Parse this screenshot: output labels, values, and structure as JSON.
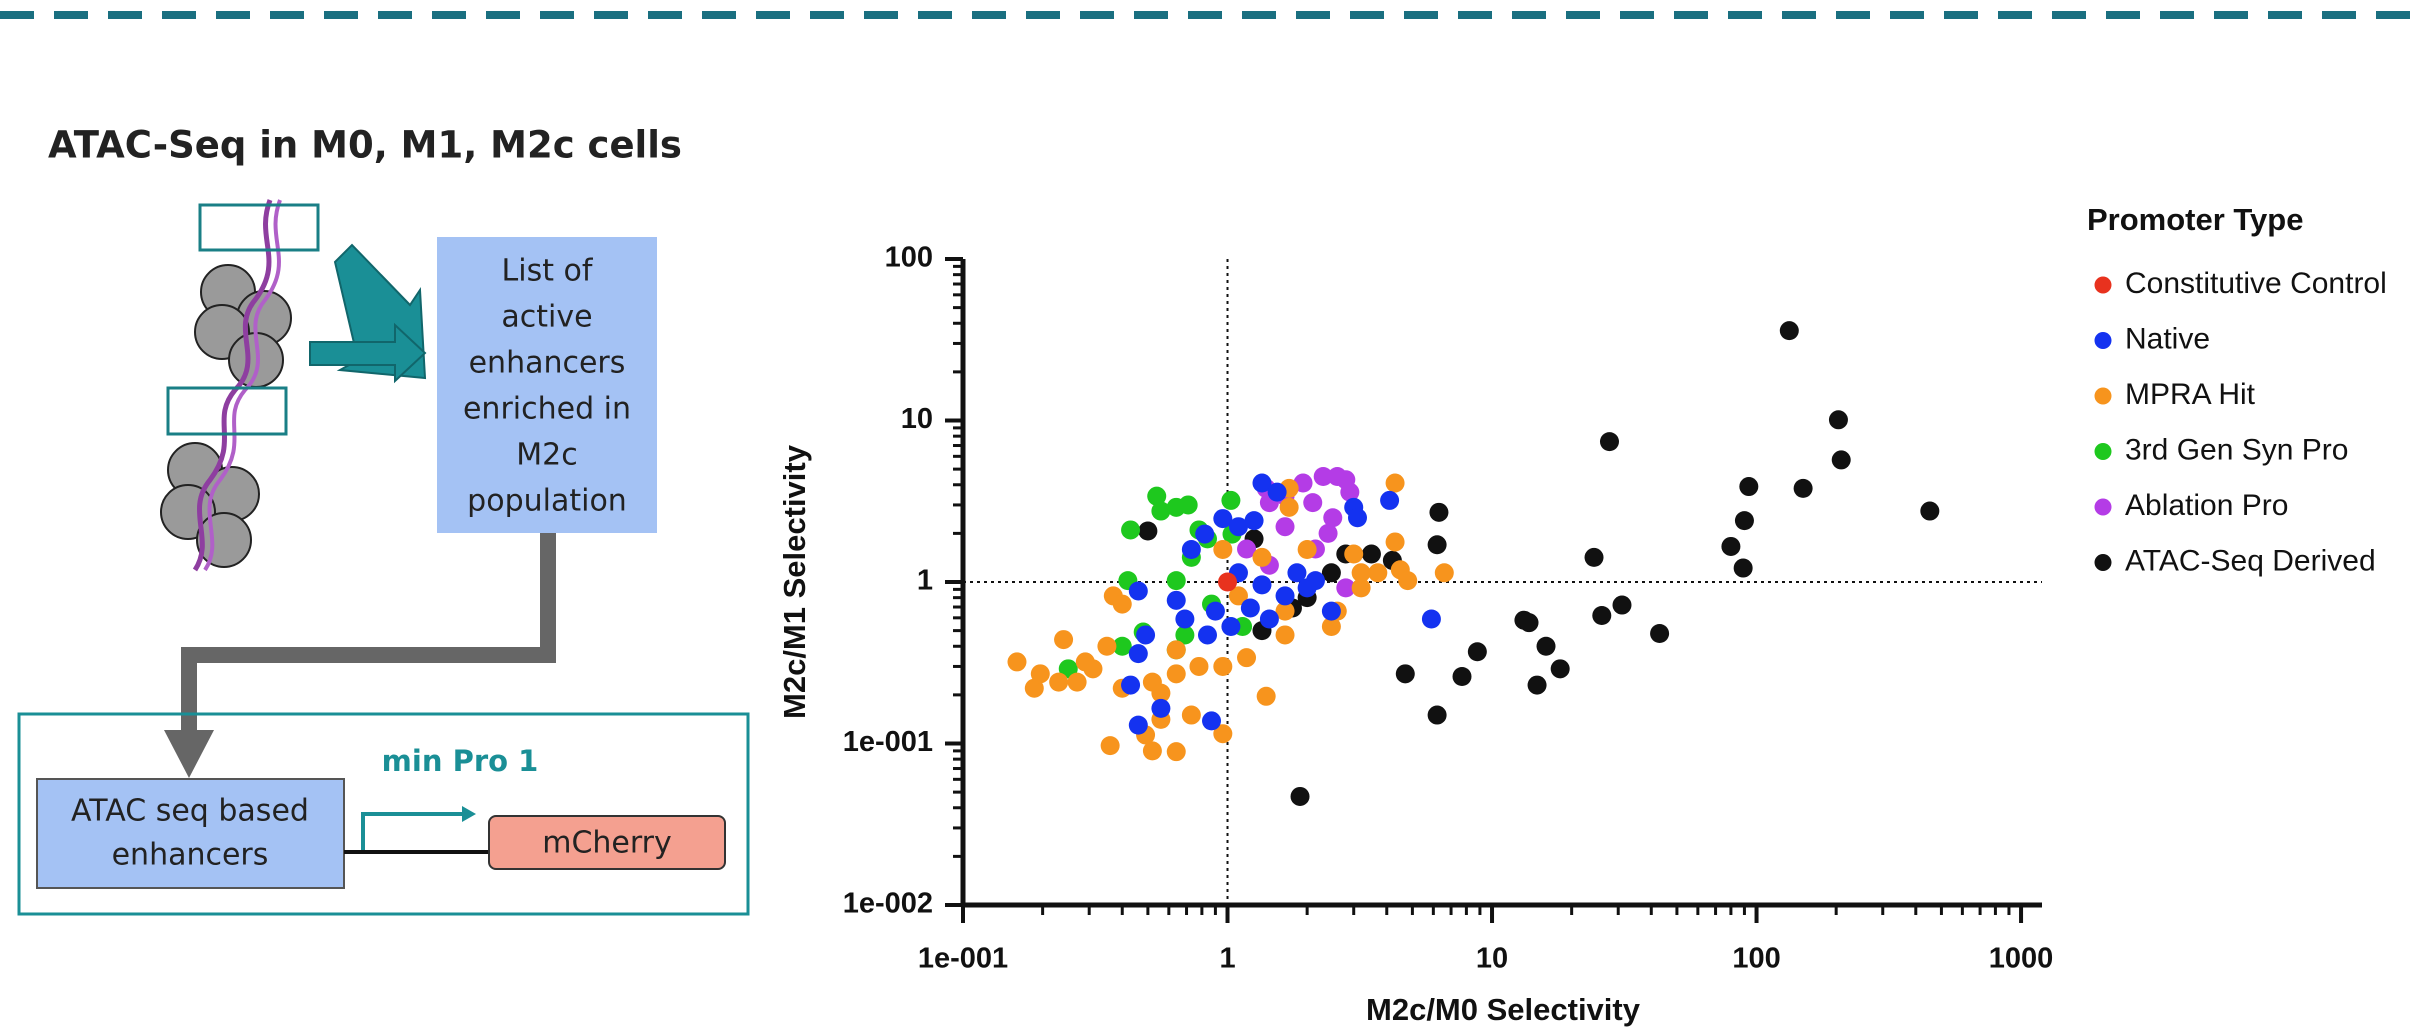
{
  "header": {
    "title": "ATAC-Seq in M0, M1, M2c cells"
  },
  "diagram": {
    "output_box": {
      "lines": [
        "List of",
        "active",
        "enhancers",
        "enriched in",
        "M2c",
        "population"
      ]
    },
    "construct": {
      "enhancer": {
        "lines": [
          "ATAC seq based",
          "enhancers"
        ]
      },
      "promoter": "min Pro 1",
      "reporter": "mCherry"
    }
  },
  "chart_data": {
    "type": "scatter",
    "x_label": "M2c/M0 Selectivity",
    "y_label": "M2c/M1 Selectivity",
    "legend_title": "Promoter Type",
    "legend": "right",
    "log_x": true,
    "log_y": true,
    "xlim": [
      0.1,
      1200
    ],
    "ylim": [
      0.01,
      100
    ],
    "xticks": [
      {
        "value": 0.1,
        "label": "1e-001"
      },
      1,
      10,
      100,
      1000
    ],
    "yticks": [
      {
        "value": 0.01,
        "label": "1e-002"
      },
      {
        "value": 0.1,
        "label": "1e-001"
      },
      1,
      10,
      100
    ],
    "reference_lines": [
      {
        "axis": "x",
        "value": 1
      },
      {
        "axis": "y",
        "value": 1
      }
    ],
    "series": [
      {
        "name": "Constitutive Control",
        "color": "#e8321e",
        "x": [
          1.0
        ],
        "values": [
          1.0
        ]
      },
      {
        "name": "Native",
        "color": "#1432f0",
        "x": [
          1.35,
          1.54,
          3.0,
          4.1,
          3.1,
          5.9,
          0.46,
          0.49,
          0.46,
          0.43,
          0.46,
          0.56,
          0.87,
          0.73,
          0.82,
          0.96,
          1.1,
          1.26,
          0.9,
          0.69,
          1.1,
          1.35,
          1.65,
          2.0,
          2.47,
          0.84,
          1.03,
          1.44,
          2.15,
          0.64,
          1.22,
          1.83
        ],
        "values": [
          4.1,
          3.6,
          2.9,
          3.2,
          2.5,
          0.59,
          0.88,
          0.47,
          0.36,
          0.23,
          0.13,
          0.165,
          0.138,
          1.59,
          1.98,
          2.47,
          2.2,
          2.4,
          0.66,
          0.59,
          1.14,
          0.96,
          0.82,
          0.92,
          0.66,
          0.47,
          0.53,
          0.59,
          1.02,
          0.77,
          0.69,
          1.14
        ]
      },
      {
        "name": "MPRA Hit",
        "color": "#f7941d",
        "x": [
          0.16,
          0.186,
          0.196,
          0.23,
          0.27,
          0.31,
          0.24,
          0.35,
          0.36,
          0.49,
          0.52,
          0.64,
          0.56,
          0.73,
          0.96,
          0.52,
          0.64,
          0.78,
          0.64,
          0.56,
          0.96,
          1.4,
          1.18,
          1.65,
          2.47,
          2.6,
          3.2,
          3.7,
          4.5,
          4.8,
          6.6,
          4.3,
          4.3,
          1.71,
          1.71,
          2.0,
          3.0,
          3.2,
          1.35,
          1.1,
          1.65,
          0.37,
          0.4,
          0.29,
          0.4,
          0.96
        ],
        "values": [
          0.32,
          0.22,
          0.27,
          0.24,
          0.24,
          0.29,
          0.44,
          0.4,
          0.097,
          0.113,
          0.09,
          0.089,
          0.141,
          0.15,
          0.115,
          0.24,
          0.27,
          0.3,
          0.38,
          0.205,
          0.3,
          0.196,
          0.34,
          0.47,
          0.53,
          0.66,
          0.92,
          1.14,
          1.19,
          1.02,
          1.14,
          4.1,
          1.77,
          3.8,
          2.9,
          1.59,
          1.49,
          1.14,
          1.42,
          0.82,
          0.66,
          0.82,
          0.73,
          0.32,
          0.22,
          1.59
        ]
      },
      {
        "name": "3rd Gen Syn Pro",
        "color": "#1ec81e",
        "x": [
          0.54,
          0.64,
          0.56,
          0.71,
          1.03,
          0.43,
          0.78,
          0.84,
          0.73,
          0.64,
          0.42,
          0.4,
          0.48,
          0.64,
          0.69,
          0.25,
          1.14,
          0.87,
          1.04
        ],
        "values": [
          3.4,
          2.9,
          2.75,
          3.0,
          3.2,
          2.1,
          2.1,
          1.85,
          1.42,
          1.02,
          1.02,
          0.4,
          0.49,
          0.38,
          0.47,
          0.29,
          0.53,
          0.73,
          1.98
        ]
      },
      {
        "name": "Ablation Pro",
        "color": "#b43ce6",
        "x": [
          1.4,
          1.65,
          1.93,
          2.3,
          2.6,
          2.9,
          2.1,
          1.44,
          2.8,
          2.5,
          2.4,
          1.65,
          2.15,
          1.18,
          2.8,
          1.44
        ],
        "values": [
          3.8,
          3.4,
          4.1,
          4.5,
          4.5,
          3.6,
          3.1,
          3.1,
          4.3,
          2.5,
          2.0,
          2.2,
          1.6,
          1.6,
          0.92,
          1.27
        ]
      },
      {
        "name": "ATAC-Seq Derived",
        "color": "#111111",
        "x": [
          133,
          27.8,
          204,
          209,
          150,
          93.5,
          90,
          80,
          89,
          452,
          24.3,
          26,
          31,
          43,
          13.2,
          13.8,
          16,
          14.8,
          18.1,
          8.8,
          7.7,
          4.7,
          6.2,
          1.88,
          6.3,
          6.2,
          0.5,
          1.26,
          2.8,
          4.2,
          3.5,
          1.35,
          1.76,
          2.47,
          2.0
        ],
        "values": [
          36,
          7.4,
          10.1,
          5.7,
          3.8,
          3.9,
          2.4,
          1.66,
          1.22,
          2.75,
          1.42,
          0.62,
          0.72,
          0.48,
          0.58,
          0.56,
          0.4,
          0.23,
          0.29,
          0.37,
          0.26,
          0.27,
          0.15,
          0.047,
          2.7,
          1.7,
          2.07,
          1.85,
          1.49,
          1.36,
          1.49,
          0.5,
          0.69,
          1.14,
          0.8
        ]
      }
    ]
  }
}
